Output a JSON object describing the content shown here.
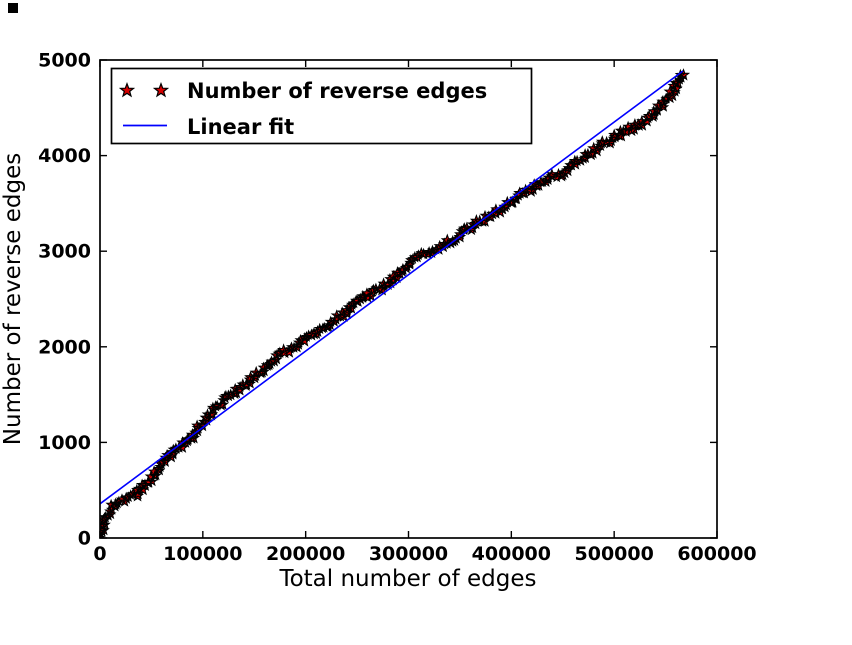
{
  "figure": {
    "background": "#ffffff",
    "border_color": "#000000"
  },
  "chart_data": {
    "type": "scatter",
    "title": "",
    "xlabel": "Total number of edges",
    "ylabel": "Number of reverse edges",
    "xlim": [
      0,
      600000
    ],
    "ylim": [
      0,
      5000
    ],
    "x_ticks": [
      0,
      100000,
      200000,
      300000,
      400000,
      500000,
      600000
    ],
    "y_ticks": [
      0,
      1000,
      2000,
      3000,
      4000,
      5000
    ],
    "grid": false,
    "legend_position": "upper left",
    "series": [
      {
        "name": "Number of reverse edges",
        "type": "scatter",
        "marker": "star",
        "color": "#d60000",
        "edge_color": "#000000",
        "points": [
          [
            0,
            0
          ],
          [
            1900,
            60
          ],
          [
            3900,
            105
          ],
          [
            5800,
            178
          ],
          [
            7800,
            250
          ],
          [
            10700,
            314
          ],
          [
            14600,
            356
          ],
          [
            19400,
            387
          ],
          [
            26300,
            418
          ],
          [
            34000,
            450
          ],
          [
            41800,
            525
          ],
          [
            49000,
            600
          ],
          [
            58300,
            740
          ],
          [
            66100,
            837
          ],
          [
            73900,
            920
          ],
          [
            81700,
            983
          ],
          [
            89500,
            1067
          ],
          [
            97200,
            1172
          ],
          [
            105000,
            1276
          ],
          [
            112800,
            1360
          ],
          [
            120600,
            1433
          ],
          [
            130300,
            1527
          ],
          [
            140000,
            1590
          ],
          [
            149800,
            1684
          ],
          [
            159500,
            1768
          ],
          [
            169200,
            1851
          ],
          [
            178900,
            1946
          ],
          [
            188600,
            1998
          ],
          [
            198400,
            2061
          ],
          [
            208100,
            2134
          ],
          [
            217800,
            2197
          ],
          [
            227500,
            2270
          ],
          [
            237200,
            2354
          ],
          [
            247000,
            2427
          ],
          [
            256700,
            2510
          ],
          [
            266400,
            2573
          ],
          [
            276100,
            2636
          ],
          [
            285900,
            2720
          ],
          [
            295600,
            2824
          ],
          [
            305300,
            2908
          ],
          [
            315000,
            2971
          ],
          [
            324700,
            3013
          ],
          [
            334500,
            3065
          ],
          [
            344200,
            3128
          ],
          [
            353900,
            3201
          ],
          [
            363600,
            3264
          ],
          [
            373300,
            3337
          ],
          [
            383100,
            3400
          ],
          [
            392800,
            3463
          ],
          [
            402500,
            3536
          ],
          [
            412200,
            3609
          ],
          [
            421900,
            3672
          ],
          [
            431600,
            3724
          ],
          [
            441400,
            3787
          ],
          [
            451100,
            3828
          ],
          [
            460800,
            3902
          ],
          [
            470500,
            3975
          ],
          [
            480200,
            4048
          ],
          [
            490000,
            4121
          ],
          [
            499700,
            4184
          ],
          [
            509400,
            4257
          ],
          [
            519100,
            4299
          ],
          [
            528800,
            4351
          ],
          [
            538500,
            4435
          ],
          [
            548200,
            4540
          ],
          [
            555000,
            4634
          ],
          [
            560900,
            4749
          ],
          [
            566700,
            4880
          ]
        ]
      },
      {
        "name": "Linear fit",
        "type": "line",
        "color": "#0000ff",
        "points": [
          [
            0,
            358
          ],
          [
            566700,
            4884
          ]
        ]
      }
    ]
  }
}
